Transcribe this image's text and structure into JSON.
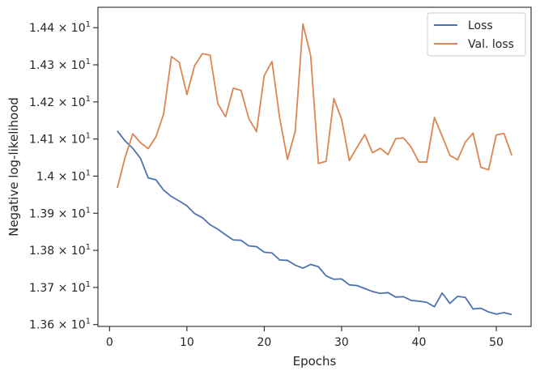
{
  "chart_data": {
    "type": "line",
    "xlabel": "Epochs",
    "ylabel": "Negative log-likelihood",
    "xlim": [
      -1.5,
      54.5
    ],
    "ylim": [
      13.595,
      14.455
    ],
    "x_ticks": [
      0,
      10,
      20,
      30,
      40,
      50
    ],
    "x_tick_labels": [
      "0",
      "10",
      "20",
      "30",
      "40",
      "50"
    ],
    "y_ticks": [
      13.6,
      13.7,
      13.8,
      13.9,
      14.0,
      14.1,
      14.2,
      14.3,
      14.4
    ],
    "y_tick_mantissas": [
      "1.36",
      "1.37",
      "1.38",
      "1.39",
      "1.4",
      "1.41",
      "1.42",
      "1.43",
      "1.44"
    ],
    "y_tick_times": "×",
    "y_tick_base": "10",
    "y_tick_exponent": "1",
    "grid": false,
    "legend_position": "top-right",
    "x": [
      1,
      2,
      3,
      4,
      5,
      6,
      7,
      8,
      9,
      10,
      11,
      12,
      13,
      14,
      15,
      16,
      17,
      18,
      19,
      20,
      21,
      22,
      23,
      24,
      25,
      26,
      27,
      28,
      29,
      30,
      31,
      32,
      33,
      34,
      35,
      36,
      37,
      38,
      39,
      40,
      41,
      42,
      43,
      44,
      45,
      46,
      47,
      48,
      49,
      50,
      51,
      52
    ],
    "series": [
      {
        "name": "Loss",
        "color": "#4c72b0",
        "values": [
          14.122,
          14.095,
          14.075,
          14.048,
          13.995,
          13.99,
          13.962,
          13.945,
          13.933,
          13.92,
          13.899,
          13.888,
          13.869,
          13.857,
          13.842,
          13.828,
          13.827,
          13.812,
          13.81,
          13.795,
          13.793,
          13.774,
          13.773,
          13.76,
          13.752,
          13.762,
          13.756,
          13.731,
          13.722,
          13.723,
          13.707,
          13.705,
          13.697,
          13.689,
          13.684,
          13.686,
          13.674,
          13.675,
          13.665,
          13.663,
          13.66,
          13.648,
          13.685,
          13.657,
          13.676,
          13.673,
          13.642,
          13.644,
          13.634,
          13.628,
          13.632,
          13.627
        ]
      },
      {
        "name": "Val. loss",
        "color": "#dd8452",
        "values": [
          13.968,
          14.05,
          14.114,
          14.09,
          14.074,
          14.106,
          14.168,
          14.322,
          14.307,
          14.22,
          14.298,
          14.33,
          14.326,
          14.195,
          14.16,
          14.237,
          14.231,
          14.155,
          14.12,
          14.271,
          14.309,
          14.156,
          14.045,
          14.12,
          14.41,
          14.325,
          14.034,
          14.04,
          14.209,
          14.153,
          14.042,
          14.078,
          14.112,
          14.063,
          14.075,
          14.058,
          14.101,
          14.103,
          14.078,
          14.038,
          14.038,
          14.158,
          14.108,
          14.056,
          14.044,
          14.092,
          14.116,
          14.024,
          14.017,
          14.111,
          14.115,
          14.056
        ]
      }
    ]
  }
}
